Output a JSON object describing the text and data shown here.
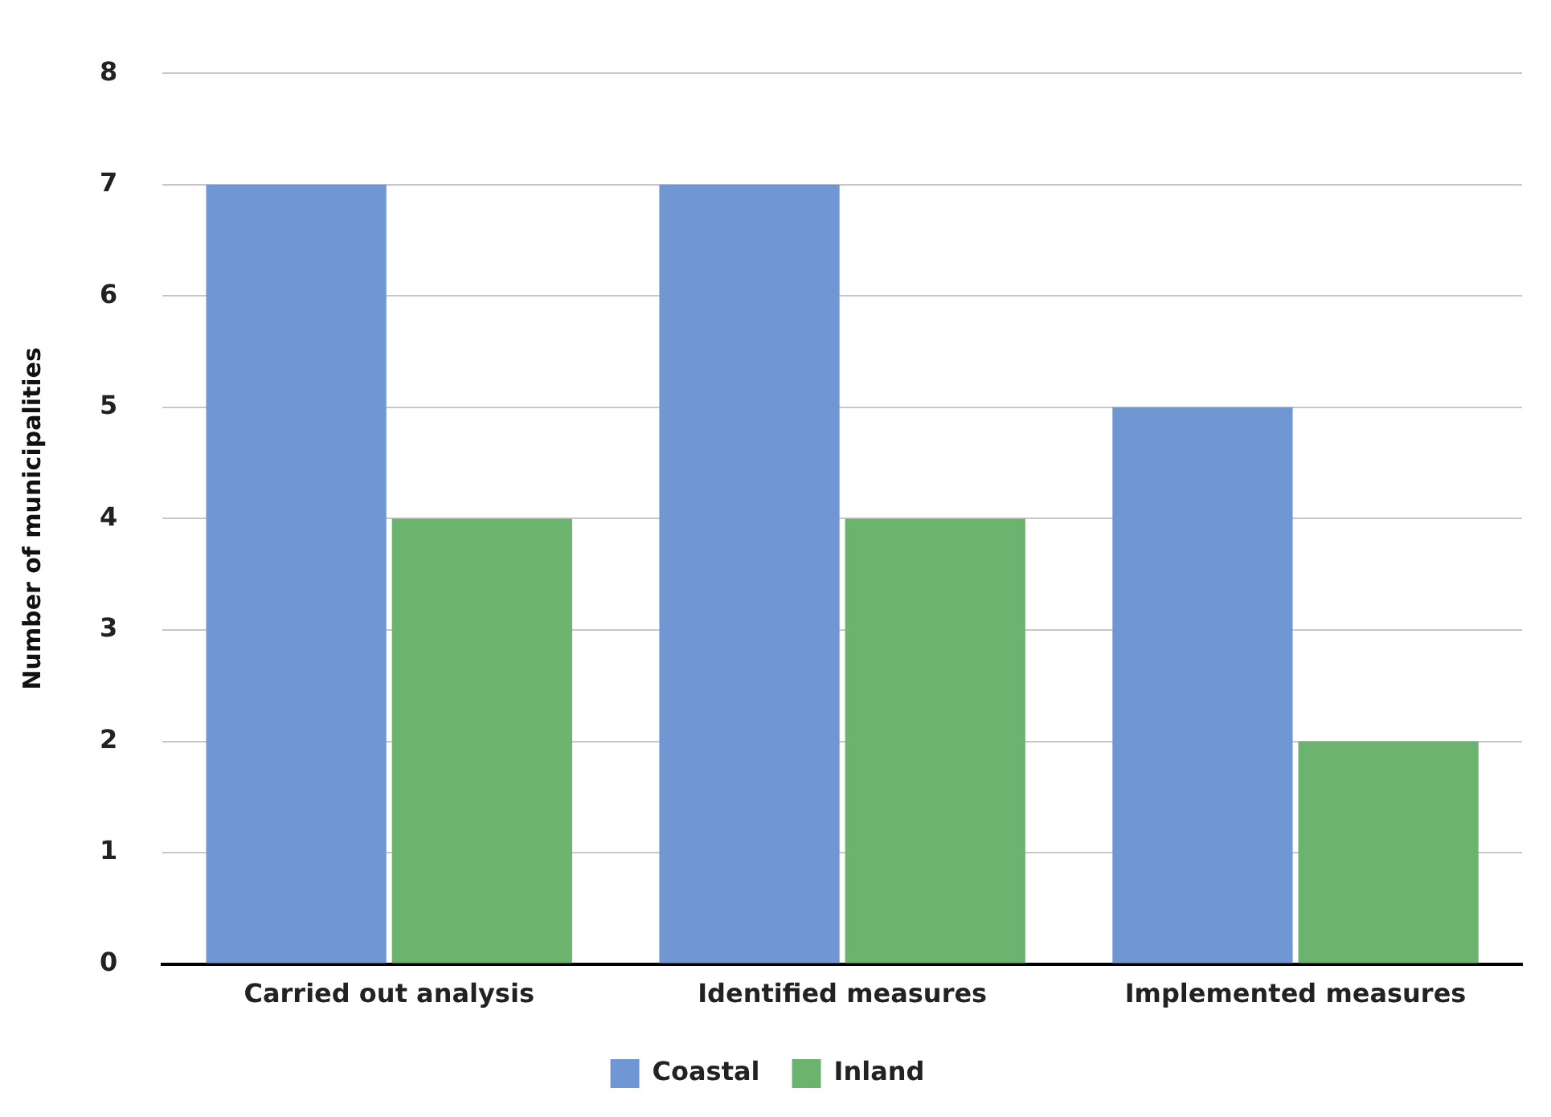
{
  "chart_data": {
    "type": "bar",
    "ylabel": "Number of municipalities",
    "categories": [
      "Carried out analysis",
      "Identified measures",
      "Implemented measures"
    ],
    "series": [
      {
        "name": "Coastal",
        "color": "#7097d3",
        "values": [
          7,
          7,
          5
        ]
      },
      {
        "name": "Inland",
        "color": "#6bb36e",
        "values": [
          4,
          4,
          2
        ]
      }
    ],
    "ylim": [
      0,
      8
    ],
    "yticks": [
      0,
      1,
      2,
      3,
      4,
      5,
      6,
      7,
      8
    ],
    "grid": "y",
    "legend": "bottom"
  }
}
